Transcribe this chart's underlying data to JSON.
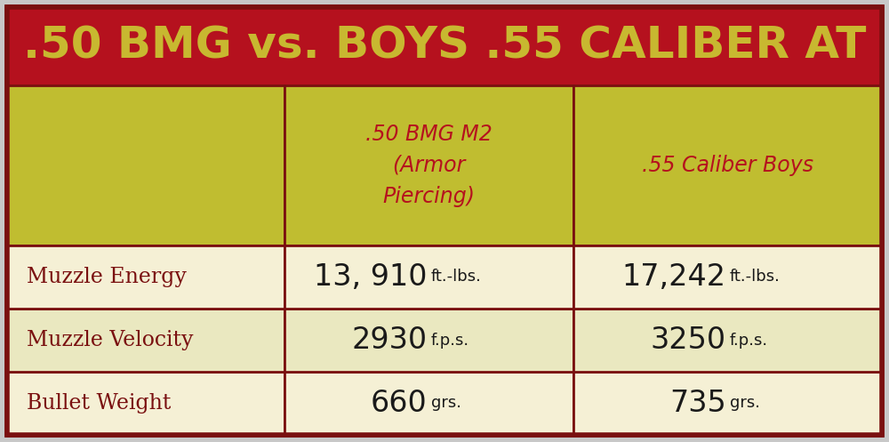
{
  "title": ".50 BMG vs. BOYS .55 CALIBER AT",
  "title_bg": "#b5111e",
  "title_color": "#c8b830",
  "col_header_bg": "#c0bd30",
  "col_header_color": "#b5111e",
  "row_header_bg_light": "#f5f0d5",
  "row_header_bg_mid": "#eae8c0",
  "data_color": "#1a1a1a",
  "border_color": "#7a1010",
  "outer_bg": "#c0bd30",
  "outer_border": "#7a1010",
  "col_headers_line1": [
    ".50 BMG M2",
    ".55 Caliber Boys"
  ],
  "col_headers_line2": [
    "(Armor",
    ""
  ],
  "col_headers_line3": [
    "Piercing)",
    ""
  ],
  "row_headers": [
    "Bullet Weight",
    "Muzzle Velocity",
    "Muzzle Energy"
  ],
  "row_data_large": [
    [
      "660",
      "735"
    ],
    [
      "2930",
      "3250"
    ],
    [
      "13, 910",
      "17,242"
    ]
  ],
  "row_data_small": [
    [
      "grs.",
      "grs."
    ],
    [
      "f.p.s.",
      "f.p.s."
    ],
    [
      "ft.-lbs.",
      "ft.-lbs."
    ]
  ],
  "row_bg_colors": [
    "#f5f0d5",
    "#eae8c0",
    "#f5f0d5"
  ]
}
